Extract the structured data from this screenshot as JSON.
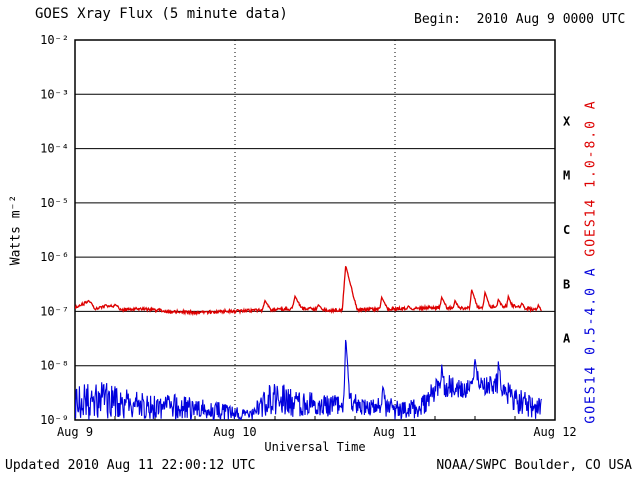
{
  "header": {
    "title": "GOES Xray Flux (5 minute data)",
    "begin_label": "Begin:  2010 Aug 9 0000 UTC"
  },
  "footer": {
    "updated": "Updated 2010 Aug 11 22:00:12 UTC",
    "source": "NOAA/SWPC Boulder, CO USA"
  },
  "colors": {
    "axis": "#000000",
    "background": "#ffffff",
    "long_channel": "#dd0000",
    "short_channel": "#0000dd"
  },
  "chart_data": {
    "type": "line",
    "title": "GOES Xray Flux (5 minute data)",
    "xlabel": "Universal Time",
    "ylabel": "Watts m⁻²",
    "x_range_hours": [
      0,
      72
    ],
    "y_log_range": [
      -9,
      -2
    ],
    "data_end_hours": 70,
    "sample_minutes": 5,
    "grid": {
      "h_lines": "solid",
      "v_lines": "dotted",
      "v_line_hours": [
        24,
        48
      ],
      "legend_position": "right-rotated"
    },
    "x_ticks": [
      {
        "label": "Aug 9",
        "hour": 0
      },
      {
        "label": "Aug 10",
        "hour": 24
      },
      {
        "label": "Aug 11",
        "hour": 48
      },
      {
        "label": "Aug 12",
        "hour": 72
      }
    ],
    "y_ticks": [
      {
        "label": "10⁻²",
        "exp": -2
      },
      {
        "label": "10⁻³",
        "exp": -3
      },
      {
        "label": "10⁻⁴",
        "exp": -4
      },
      {
        "label": "10⁻⁵",
        "exp": -5
      },
      {
        "label": "10⁻⁶",
        "exp": -6
      },
      {
        "label": "10⁻⁷",
        "exp": -7
      },
      {
        "label": "10⁻⁸",
        "exp": -8
      },
      {
        "label": "10⁻⁹",
        "exp": -9
      }
    ],
    "flare_classes": [
      {
        "label": "X",
        "log_center": -3.5
      },
      {
        "label": "M",
        "log_center": -4.5
      },
      {
        "label": "C",
        "log_center": -5.5
      },
      {
        "label": "B",
        "log_center": -6.5
      },
      {
        "label": "A",
        "log_center": -7.5
      }
    ],
    "series": [
      {
        "name": "GOES14 1.0-8.0 A",
        "color": "#dd0000",
        "seed": 11,
        "noise_amp": 0.03,
        "baseline": [
          [
            0,
            -6.93
          ],
          [
            1.5,
            -6.85
          ],
          [
            3,
            -6.96
          ],
          [
            5,
            -6.89
          ],
          [
            7,
            -6.97
          ],
          [
            10,
            -6.95
          ],
          [
            14,
            -7.0
          ],
          [
            18,
            -7.02
          ],
          [
            22,
            -7.0
          ],
          [
            26,
            -6.99
          ],
          [
            30,
            -6.97
          ],
          [
            34,
            -6.94
          ],
          [
            38,
            -6.98
          ],
          [
            42,
            -6.97
          ],
          [
            46,
            -6.96
          ],
          [
            50,
            -6.95
          ],
          [
            54,
            -6.93
          ],
          [
            58,
            -6.94
          ],
          [
            62,
            -6.92
          ],
          [
            66,
            -6.9
          ],
          [
            69,
            -6.97
          ],
          [
            72,
            -7.0
          ]
        ],
        "flares": [
          [
            2.0,
            -6.8,
            0.5,
            1.0
          ],
          [
            6.0,
            -6.87,
            0.3,
            0.8
          ],
          [
            28.5,
            -6.8,
            0.4,
            0.9
          ],
          [
            33.0,
            -6.72,
            0.4,
            1.0
          ],
          [
            36.5,
            -6.88,
            0.3,
            0.6
          ],
          [
            40.6,
            -6.15,
            0.5,
            1.7
          ],
          [
            46.0,
            -6.74,
            0.3,
            0.9
          ],
          [
            50.0,
            -6.9,
            0.2,
            0.4
          ],
          [
            55.0,
            -6.74,
            0.3,
            0.8
          ],
          [
            57.0,
            -6.8,
            0.25,
            0.6
          ],
          [
            59.5,
            -6.6,
            0.3,
            0.9
          ],
          [
            61.5,
            -6.65,
            0.3,
            0.8
          ],
          [
            63.5,
            -6.78,
            0.25,
            0.6
          ],
          [
            65.0,
            -6.72,
            0.25,
            0.6
          ],
          [
            67.0,
            -6.85,
            0.2,
            0.5
          ],
          [
            69.5,
            -6.88,
            0.2,
            0.4
          ]
        ]
      },
      {
        "name": "GOES14 0.5-4.0 A",
        "color": "#0000dd",
        "seed": 23,
        "band": [
          [
            0,
            -9.0,
            -8.4
          ],
          [
            2,
            -9.0,
            -8.3
          ],
          [
            4,
            -8.95,
            -8.3
          ],
          [
            6,
            -9.0,
            -8.35
          ],
          [
            9,
            -9.0,
            -8.45
          ],
          [
            12,
            -9.0,
            -8.55
          ],
          [
            15,
            -9.0,
            -8.5
          ],
          [
            18,
            -9.0,
            -8.6
          ],
          [
            21,
            -9.0,
            -8.65
          ],
          [
            24,
            -9.0,
            -8.75
          ],
          [
            26.5,
            -9.0,
            -8.8
          ],
          [
            28.5,
            -8.95,
            -8.4
          ],
          [
            30,
            -8.9,
            -8.3
          ],
          [
            32,
            -8.95,
            -8.35
          ],
          [
            34,
            -8.95,
            -8.5
          ],
          [
            36,
            -8.9,
            -8.45
          ],
          [
            38,
            -8.95,
            -8.55
          ],
          [
            40,
            -8.9,
            -8.5
          ],
          [
            41,
            -8.8,
            -8.45
          ],
          [
            42.5,
            -8.9,
            -8.55
          ],
          [
            44,
            -8.95,
            -8.65
          ],
          [
            45.5,
            -8.9,
            -8.5
          ],
          [
            46.5,
            -8.95,
            -8.55
          ],
          [
            48,
            -9.0,
            -8.6
          ],
          [
            50,
            -9.0,
            -8.65
          ],
          [
            52,
            -8.95,
            -8.55
          ],
          [
            54,
            -8.7,
            -8.25
          ],
          [
            56,
            -8.6,
            -8.15
          ],
          [
            58,
            -8.65,
            -8.25
          ],
          [
            60,
            -8.5,
            -8.1
          ],
          [
            61.5,
            -8.55,
            -8.2
          ],
          [
            63,
            -8.55,
            -8.1
          ],
          [
            64.5,
            -8.65,
            -8.25
          ],
          [
            66,
            -8.85,
            -8.4
          ],
          [
            68,
            -9.0,
            -8.5
          ],
          [
            70,
            -9.0,
            -8.55
          ],
          [
            72,
            -9.0,
            -8.7
          ]
        ],
        "flares": [
          [
            40.6,
            -7.45,
            0.25,
            0.6
          ],
          [
            46.2,
            -8.35,
            0.2,
            0.4
          ],
          [
            55.0,
            -7.98,
            0.2,
            0.45
          ],
          [
            60.0,
            -7.88,
            0.2,
            0.5
          ],
          [
            63.5,
            -7.92,
            0.15,
            0.4
          ]
        ]
      }
    ]
  }
}
